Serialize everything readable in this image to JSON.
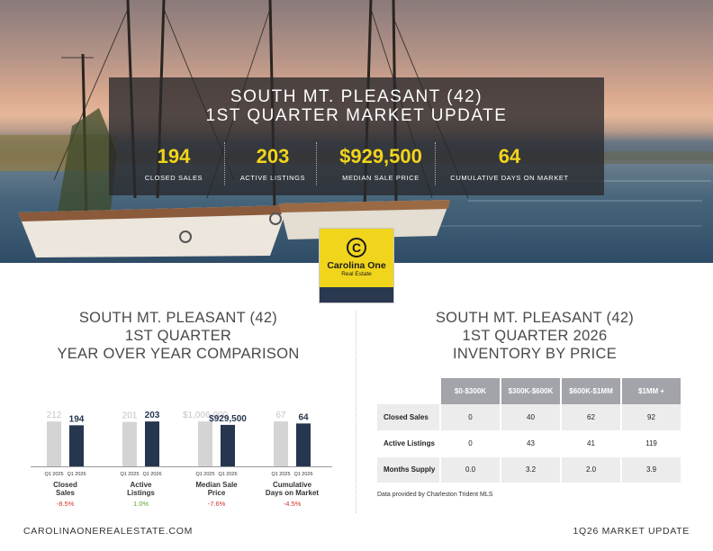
{
  "header": {
    "title_line1": "SOUTH MT. PLEASANT (42)",
    "title_line2": "1ST QUARTER MARKET UPDATE"
  },
  "stats": [
    {
      "value": "194",
      "label": "CLOSED SALES"
    },
    {
      "value": "203",
      "label": "ACTIVE LISTINGS"
    },
    {
      "value": "$929,500",
      "label": "MEDIAN SALE PRICE"
    },
    {
      "value": "64",
      "label": "CUMULATIVE DAYS ON MARKET"
    }
  ],
  "logo": {
    "mark": "C",
    "name": "Carolina One",
    "sub": "Real Estate"
  },
  "yoy": {
    "title_line1": "SOUTH MT. PLEASANT (42)",
    "title_line2": "1ST QUARTER",
    "title_line3": "YEAR OVER YEAR COMPARISON"
  },
  "inventory": {
    "title_line1": "SOUTH MT. PLEASANT (42)",
    "title_line2": "1ST QUARTER 2026",
    "title_line3": "INVENTORY BY PRICE",
    "columns": [
      "$0-$300K",
      "$300K-$600K",
      "$600K-$1MM",
      "$1MM +"
    ],
    "rows": [
      {
        "label": "Closed Sales",
        "values": [
          "0",
          "40",
          "62",
          "92"
        ]
      },
      {
        "label": "Active Listings",
        "values": [
          "0",
          "43",
          "41",
          "119"
        ]
      },
      {
        "label": "Months Supply",
        "values": [
          "0.0",
          "3.2",
          "2.0",
          "3.9"
        ]
      }
    ],
    "source": "Data provided by Charleston Trident MLS"
  },
  "chart_data": {
    "type": "bar",
    "series": [
      {
        "name": "Q1 2025",
        "color": "#d4d4d4"
      },
      {
        "name": "Q1 2026",
        "color": "#26364f"
      }
    ],
    "groups": [
      {
        "label_line1": "Closed",
        "label_line2": "Sales",
        "prev": 212,
        "curr": 194,
        "prev_label": "212",
        "curr_label": "194",
        "change": "-8.5%",
        "change_color": "#d0342c"
      },
      {
        "label_line1": "Active",
        "label_line2": "Listings",
        "prev": 201,
        "curr": 203,
        "prev_label": "201",
        "curr_label": "203",
        "change": "1.0%",
        "change_color": "#5aa02c"
      },
      {
        "label_line1": "Median Sale",
        "label_line2": "Price",
        "prev": 1006000,
        "curr": 929500,
        "prev_label": "$1,006,000",
        "curr_label": "$929,500",
        "change": "-7.6%",
        "change_color": "#d0342c"
      },
      {
        "label_line1": "Cumulative",
        "label_line2": "Days on Market",
        "prev": 67,
        "curr": 64,
        "prev_label": "67",
        "curr_label": "64",
        "change": "-4.5%",
        "change_color": "#d0342c"
      }
    ]
  },
  "footer": {
    "left": "CAROLINAONEREALESTATE.COM",
    "right": "1Q26 MARKET UPDATE"
  }
}
